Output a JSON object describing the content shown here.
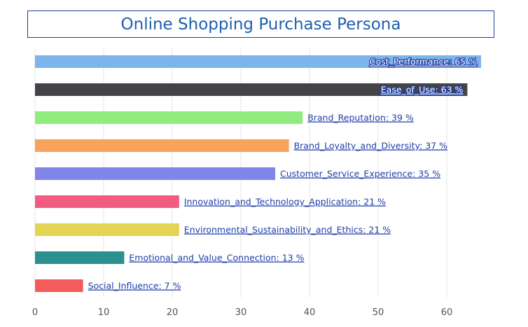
{
  "chart_data": {
    "type": "bar",
    "orientation": "horizontal",
    "title": "Online Shopping Purchase Persona",
    "categories": [
      "Cost_Performance",
      "Ease_of_Use",
      "Brand_Reputation",
      "Brand_Loyalty_and_Diversity",
      "Customer_Service_Experience",
      "Innovation_and_Technology_Application",
      "Environmental_Sustainability_and_Ethics",
      "Emotional_and_Value_Connection",
      "Social_Influence"
    ],
    "values": [
      65,
      63,
      39,
      37,
      35,
      21,
      21,
      13,
      7
    ],
    "labels": [
      "Cost_Performance: 65 %",
      "Ease_of_Use: 63 %",
      "Brand_Reputation: 39 %",
      "Brand_Loyalty_and_Diversity: 37 %",
      "Customer_Service_Experience: 35 %",
      "Innovation_and_Technology_Application: 21 %",
      "Environmental_Sustainability_and_Ethics: 21 %",
      "Emotional_and_Value_Connection: 13 %",
      "Social_Influence: 7 %"
    ],
    "colors": [
      "#7cb5ec",
      "#434348",
      "#90ed7d",
      "#f7a35c",
      "#8085e9",
      "#f15c80",
      "#e4d354",
      "#2b908f",
      "#f45b5b"
    ],
    "xlim": [
      0,
      65
    ],
    "xticks": [
      0,
      10,
      20,
      30,
      40,
      50,
      60
    ],
    "xlabel": "",
    "ylabel": "",
    "grid": true,
    "legend": "none"
  }
}
